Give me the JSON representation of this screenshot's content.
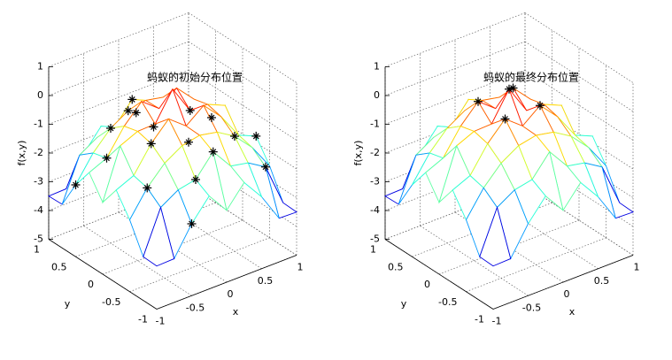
{
  "chart_data": [
    {
      "type": "surface3d",
      "title": "蚂蚁的初始分布位置",
      "xlabel": "x",
      "ylabel": "y",
      "zlabel": "f(x,y)",
      "x": [
        -1,
        -0.75,
        -0.5,
        -0.25,
        0,
        0.25,
        0.5,
        0.75,
        1
      ],
      "y": [
        -1,
        -0.75,
        -0.5,
        -0.25,
        0,
        0.25,
        0.5,
        0.75,
        1
      ],
      "z": [
        [
          -3.5,
          -3.48,
          -2.5,
          -1.77,
          -2.5,
          -1.77,
          -2.5,
          -3.48,
          -3.5
        ],
        [
          -3.48,
          -2.0,
          -1.625,
          -1.5,
          -0.77,
          -1.5,
          -1.625,
          -2.0,
          -3.48
        ],
        [
          -2.5,
          -1.625,
          -1.0,
          -0.625,
          -0.5,
          -0.625,
          -1.0,
          -1.625,
          -2.5
        ],
        [
          -1.77,
          -1.5,
          -0.625,
          0,
          -0.48,
          0,
          -0.625,
          -1.5,
          -1.77
        ],
        [
          -2.5,
          -0.77,
          -0.5,
          -0.48,
          0.5,
          -0.48,
          -0.5,
          -0.77,
          -2.5
        ],
        [
          -1.77,
          -1.5,
          -0.625,
          0,
          -0.48,
          0,
          -0.625,
          -1.5,
          -1.77
        ],
        [
          -2.5,
          -1.625,
          -1.0,
          -0.625,
          -0.5,
          -0.625,
          -1.0,
          -1.625,
          -2.5
        ],
        [
          -3.48,
          -2.0,
          -1.625,
          -1.5,
          -0.77,
          -1.5,
          -1.625,
          -2.0,
          -3.48
        ],
        [
          -3.5,
          -3.48,
          -2.5,
          -1.77,
          -2.5,
          -1.77,
          -2.5,
          -3.48,
          -3.5
        ]
      ],
      "points": {
        "x": [
          -0.75,
          -0.5,
          -0.25,
          0,
          0.25,
          0.5,
          0.75,
          1,
          -1,
          -0.5,
          0.5,
          0.75,
          -0.25,
          0.25,
          -0.75,
          0,
          1,
          -0.5
        ],
        "y": [
          -0.5,
          0.5,
          -0.75,
          0.75,
          0,
          -0.5,
          0.25,
          -0.25,
          0.5,
          -1,
          1,
          -0.75,
          0.5,
          1,
          0.25,
          -0.75,
          1,
          -0.25
        ],
        "z": [
          -1.625,
          -1.0,
          -1.5,
          -0.77,
          -0.48,
          -1.0,
          -1.5,
          -1.77,
          -2.5,
          -2.5,
          -2.5,
          -2.0,
          -0.625,
          -1.77,
          -1.5,
          -0.77,
          -3.5,
          -0.625
        ],
        "color": "#000000"
      },
      "xlim": [
        -1,
        1
      ],
      "ylim": [
        -1,
        1
      ],
      "zlim": [
        -5,
        1
      ],
      "xticks": [
        -1,
        -0.5,
        0,
        0.5,
        1
      ],
      "yticks": [
        -1,
        -0.5,
        0,
        0.5,
        1
      ],
      "zticks": [
        -5,
        -4,
        -3,
        -2,
        -1,
        0,
        1
      ],
      "grid": true
    },
    {
      "type": "surface3d",
      "title": "蚂蚁的最终分布位置",
      "xlabel": "x",
      "ylabel": "y",
      "zlabel": "f(x,y)",
      "x": [
        -1,
        -0.75,
        -0.5,
        -0.25,
        0,
        0.25,
        0.5,
        0.75,
        1
      ],
      "y": [
        -1,
        -0.75,
        -0.5,
        -0.25,
        0,
        0.25,
        0.5,
        0.75,
        1
      ],
      "z": [
        [
          -3.5,
          -3.48,
          -2.5,
          -1.77,
          -2.5,
          -1.77,
          -2.5,
          -3.48,
          -3.5
        ],
        [
          -3.48,
          -2.0,
          -1.625,
          -1.5,
          -0.77,
          -1.5,
          -1.625,
          -2.0,
          -3.48
        ],
        [
          -2.5,
          -1.625,
          -1.0,
          -0.625,
          -0.5,
          -0.625,
          -1.0,
          -1.625,
          -2.5
        ],
        [
          -1.77,
          -1.5,
          -0.625,
          0,
          -0.48,
          0,
          -0.625,
          -1.5,
          -1.77
        ],
        [
          -2.5,
          -0.77,
          -0.5,
          -0.48,
          0.5,
          -0.48,
          -0.5,
          -0.77,
          -2.5
        ],
        [
          -1.77,
          -1.5,
          -0.625,
          0,
          -0.48,
          0,
          -0.625,
          -1.5,
          -1.77
        ],
        [
          -2.5,
          -1.625,
          -1.0,
          -0.625,
          -0.5,
          -0.625,
          -1.0,
          -1.625,
          -2.5
        ],
        [
          -3.48,
          -2.0,
          -1.625,
          -1.5,
          -0.77,
          -1.5,
          -1.625,
          -2.0,
          -3.48
        ],
        [
          -3.5,
          -3.48,
          -2.5,
          -1.77,
          -2.5,
          -1.77,
          -2.5,
          -3.48,
          -3.5
        ]
      ],
      "points": {
        "x": [
          -0.25,
          -0.25,
          0.25,
          0.25,
          0
        ],
        "y": [
          -0.25,
          0.25,
          -0.25,
          0.25,
          0
        ],
        "z": [
          0,
          0,
          0,
          0,
          0.5
        ],
        "color": "#000000"
      },
      "xlim": [
        -1,
        1
      ],
      "ylim": [
        -1,
        1
      ],
      "zlim": [
        -5,
        1
      ],
      "xticks": [
        -1,
        -0.5,
        0,
        0.5,
        1
      ],
      "yticks": [
        -1,
        -0.5,
        0,
        0.5,
        1
      ],
      "zticks": [
        -5,
        -4,
        -3,
        -2,
        -1,
        0,
        1
      ],
      "grid": true
    }
  ]
}
